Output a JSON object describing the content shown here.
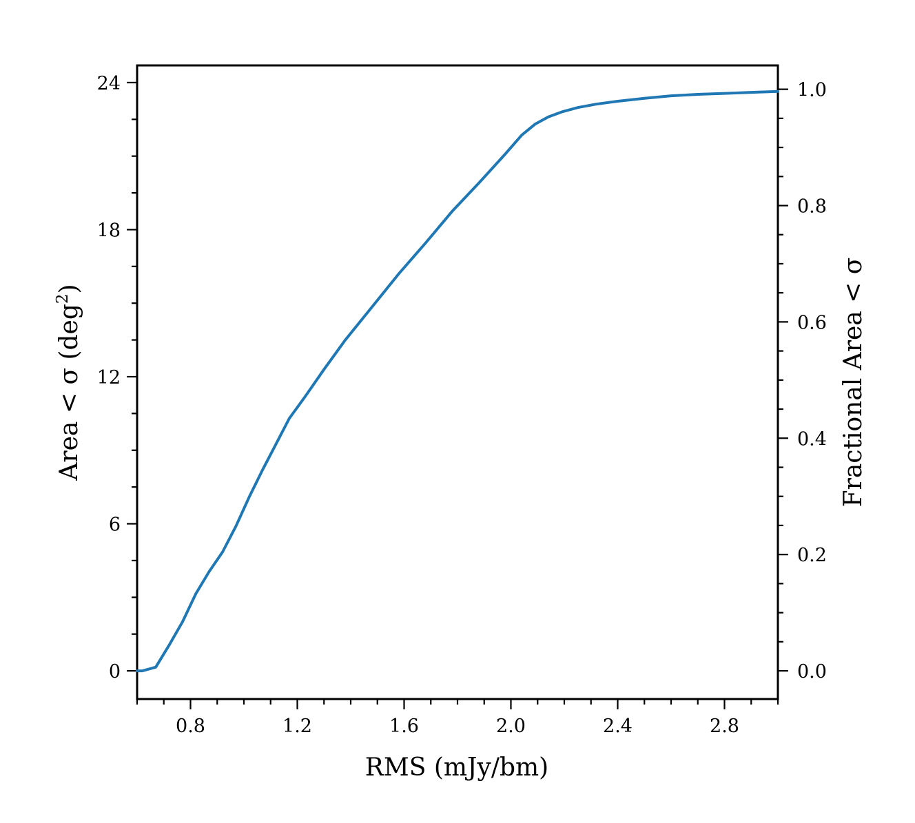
{
  "chart_data": {
    "type": "line",
    "xlabel": "RMS (mJy/bm)",
    "ylabel_left": "Area < σ (deg²)",
    "ylabel_left_parts": {
      "main": "Area < σ (deg",
      "sup": "2",
      "close": ")"
    },
    "ylabel_right": "Fractional Area < σ",
    "xlim": [
      0.6,
      3.0
    ],
    "ylim_left": [
      -1.15,
      24.7
    ],
    "ylim_right": [
      -0.0485,
      1.041
    ],
    "x_ticks": [
      0.8,
      1.2,
      1.6,
      2.0,
      2.4,
      2.8
    ],
    "x_tick_labels": [
      "0.8",
      "1.2",
      "1.6",
      "2.0",
      "2.4",
      "2.8"
    ],
    "x_minor_step": 0.1,
    "y_left_ticks": [
      0,
      6,
      12,
      18,
      24
    ],
    "y_left_tick_labels": [
      "0",
      "6",
      "12",
      "18",
      "24"
    ],
    "y_left_minor_step": 1.5,
    "y_right_ticks": [
      0.0,
      0.2,
      0.4,
      0.6,
      0.8,
      1.0
    ],
    "y_right_tick_labels": [
      "0.0",
      "0.2",
      "0.4",
      "0.6",
      "0.8",
      "1.0"
    ],
    "y_right_minor_step": 0.05,
    "line_color": "#1f77b4",
    "grid": false,
    "series": [
      {
        "x": [
          0.6,
          0.62,
          0.67,
          0.72,
          0.77,
          0.82,
          0.87,
          0.92,
          0.97,
          1.02,
          1.07,
          1.12,
          1.17,
          1.23,
          1.3,
          1.38,
          1.48,
          1.58,
          1.68,
          1.78,
          1.88,
          1.98,
          2.04,
          2.09,
          2.14,
          2.19,
          2.25,
          2.32,
          2.4,
          2.5,
          2.6,
          2.7,
          2.8,
          2.9,
          3.0
        ],
        "y": [
          0.0,
          0.0,
          0.15,
          1.05,
          2.0,
          3.15,
          4.05,
          4.85,
          5.9,
          7.1,
          8.2,
          9.25,
          10.3,
          11.2,
          12.3,
          13.5,
          14.85,
          16.2,
          17.45,
          18.75,
          19.9,
          21.1,
          21.85,
          22.3,
          22.6,
          22.8,
          22.98,
          23.12,
          23.24,
          23.36,
          23.46,
          23.52,
          23.56,
          23.6,
          23.64
        ]
      }
    ]
  }
}
